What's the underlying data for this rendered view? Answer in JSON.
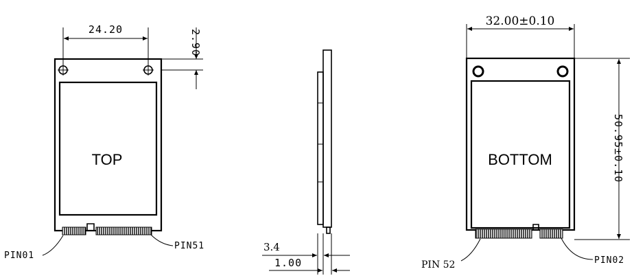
{
  "top_view": {
    "width_dim": "24.20",
    "hole_dim": "2.90",
    "face_label": "TOP",
    "pin_left": "PIN01",
    "pin_right": "PIN51"
  },
  "side_view": {
    "thickness_dim": "3.4",
    "board_dim": "1.00"
  },
  "bottom_view": {
    "width_dim": "32.00±0.10",
    "height_dim": "50.95±0.10",
    "face_label": "BOTTOM",
    "pin_left": "PIN 52",
    "pin_right": "PIN02"
  }
}
